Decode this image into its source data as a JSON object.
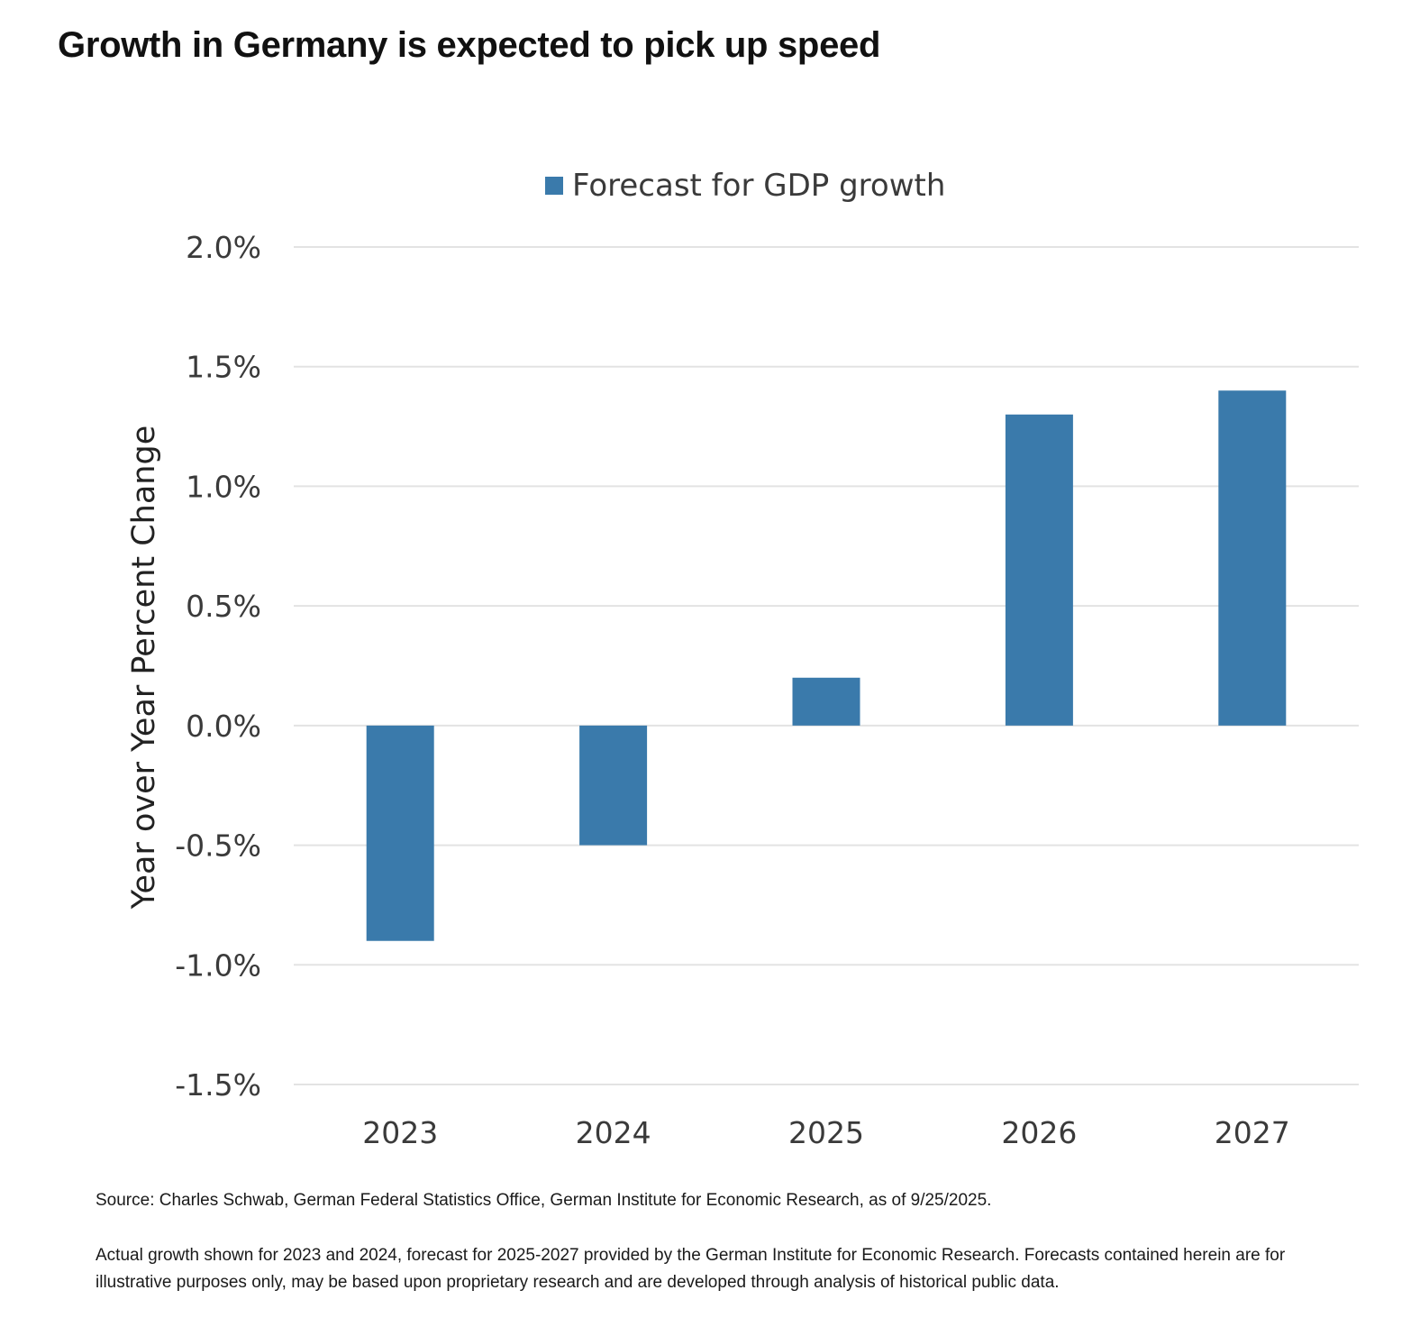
{
  "title": "Growth in Germany is expected to pick up speed",
  "colors": {
    "bar": "#3a7aab",
    "grid": "#e3e3e3"
  },
  "chart_data": {
    "type": "bar",
    "categories": [
      "2023",
      "2024",
      "2025",
      "2026",
      "2027"
    ],
    "series": [
      {
        "name": "Forecast for GDP growth",
        "values": [
          -0.9,
          -0.5,
          0.2,
          1.3,
          1.4
        ]
      }
    ],
    "ylabel": "Year over Year Percent Change",
    "xlabel": "",
    "ylim": [
      -1.5,
      2.0
    ],
    "yticks": [
      2.0,
      1.5,
      1.0,
      0.5,
      0.0,
      -0.5,
      -1.0,
      -1.5
    ],
    "ytick_labels": [
      "2.0%",
      "1.5%",
      "1.0%",
      "0.5%",
      "0.0%",
      "-0.5%",
      "-1.0%",
      "-1.5%"
    ],
    "grid": true,
    "legend_position": "top-center"
  },
  "footer": {
    "source": "Source: Charles Schwab, German Federal Statistics Office, German Institute for Economic Research, as of 9/25/2025.",
    "note": "Actual growth shown for 2023 and 2024, forecast for 2025-2027 provided by the German Institute for Economic Research. Forecasts contained herein are for illustrative purposes only, may be based upon proprietary research and are developed through analysis of historical public data."
  }
}
